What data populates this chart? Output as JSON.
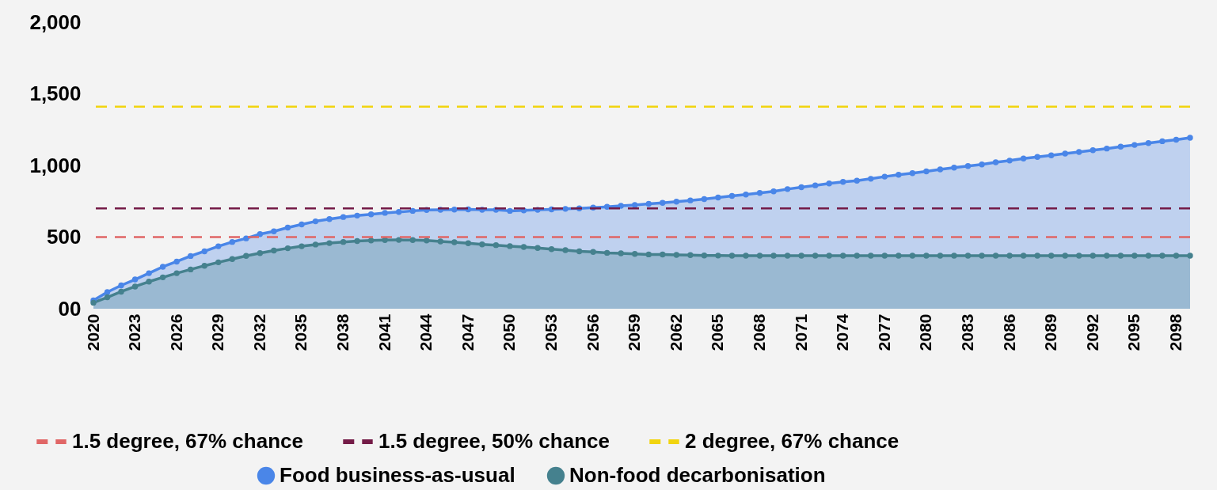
{
  "chart_data": {
    "type": "area",
    "xlim": [
      2020,
      2099
    ],
    "xticks": [
      2020,
      2023,
      2026,
      2029,
      2032,
      2035,
      2038,
      2041,
      2044,
      2047,
      2050,
      2053,
      2056,
      2059,
      2062,
      2065,
      2068,
      2071,
      2074,
      2077,
      2080,
      2083,
      2086,
      2089,
      2092,
      2095,
      2098
    ],
    "ylim": [
      0,
      2000
    ],
    "yticks": [
      {
        "value": 0,
        "label": "00"
      },
      {
        "value": 500,
        "label": "500"
      },
      {
        "value": 1000,
        "label": "1,000"
      },
      {
        "value": 1500,
        "label": "1,500"
      },
      {
        "value": 2000,
        "label": "2,000"
      }
    ],
    "x": [
      2020,
      2021,
      2022,
      2023,
      2024,
      2025,
      2026,
      2027,
      2028,
      2029,
      2030,
      2031,
      2032,
      2033,
      2034,
      2035,
      2036,
      2037,
      2038,
      2039,
      2040,
      2041,
      2042,
      2043,
      2044,
      2045,
      2046,
      2047,
      2048,
      2049,
      2050,
      2051,
      2052,
      2053,
      2054,
      2055,
      2056,
      2057,
      2058,
      2059,
      2060,
      2061,
      2062,
      2063,
      2064,
      2065,
      2066,
      2067,
      2068,
      2069,
      2070,
      2071,
      2072,
      2073,
      2074,
      2075,
      2076,
      2077,
      2078,
      2079,
      2080,
      2081,
      2082,
      2083,
      2084,
      2085,
      2086,
      2087,
      2088,
      2089,
      2090,
      2091,
      2092,
      2093,
      2094,
      2095,
      2096,
      2097,
      2098,
      2099
    ],
    "series": [
      {
        "name": "Food business-as-usual",
        "color": "#4a86e8",
        "values": [
          58,
          116,
          163,
          204,
          248,
          293,
          329,
          368,
          401,
          436,
          466,
          491,
          521,
          540,
          566,
          588,
          610,
          626,
          640,
          650,
          659,
          669,
          675,
          683,
          689,
          691,
          692,
          693,
          691,
          690,
          683,
          686,
          690,
          693,
          697,
          700,
          706,
          711,
          718,
          724,
          732,
          739,
          747,
          756,
          765,
          776,
          787,
          797,
          808,
          819,
          835,
          848,
          861,
          874,
          885,
          894,
          907,
          922,
          935,
          946,
          959,
          972,
          985,
          996,
          1007,
          1022,
          1034,
          1048,
          1059,
          1070,
          1083,
          1094,
          1106,
          1118,
          1131,
          1143,
          1156,
          1169,
          1180,
          1193
        ]
      },
      {
        "name": "Non-food decarbonisation",
        "color": "#45818e",
        "values": [
          42,
          80,
          119,
          155,
          189,
          219,
          248,
          274,
          300,
          324,
          347,
          369,
          388,
          406,
          422,
          436,
          448,
          458,
          466,
          472,
          476,
          479,
          480,
          479,
          476,
          470,
          464,
          457,
          449,
          444,
          437,
          431,
          424,
          416,
          409,
          401,
          396,
          390,
          387,
          383,
          379,
          378,
          376,
          374,
          372,
          371,
          370,
          370,
          370,
          370,
          370,
          370,
          370,
          370,
          370,
          370,
          370,
          370,
          370,
          370,
          370,
          370,
          370,
          370,
          370,
          370,
          370,
          370,
          370,
          370,
          370,
          370,
          370,
          370,
          370,
          370,
          370,
          370,
          370,
          370
        ]
      }
    ],
    "ref_lines": [
      {
        "axis": "y",
        "value": 500,
        "label": "1.5 degree, 67% chance",
        "color": "#e06666",
        "line_style": "dashed"
      },
      {
        "axis": "y",
        "value": 700,
        "label": "1.5 degree, 50% chance",
        "color": "#741b47",
        "line_style": "dashed"
      },
      {
        "axis": "y",
        "value": 1410,
        "label": "2 degree, 67% chance",
        "color": "#f1d40f",
        "line_style": "dashed"
      }
    ],
    "marker": "circle",
    "line_style": "solid",
    "legend": "bottom",
    "grid": false
  }
}
